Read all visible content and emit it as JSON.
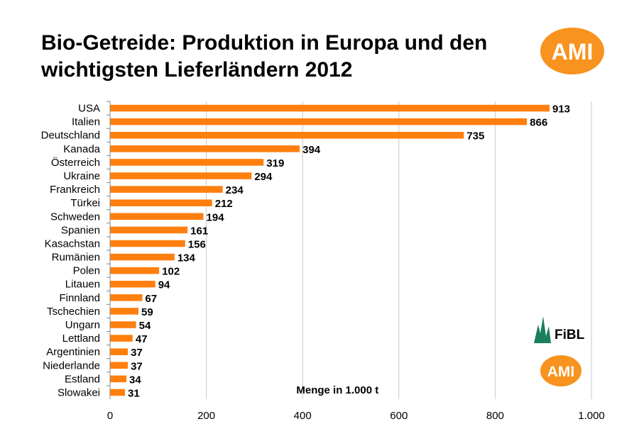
{
  "title_line1": "Bio-Getreide: Produktion in Europa und den",
  "title_line2": "wichtigsten Lieferländern 2012",
  "logos": {
    "ami_text": "AMI",
    "fibl_text": "FiBL",
    "ami_color": "#f7931e"
  },
  "chart_data": {
    "type": "bar",
    "orientation": "horizontal",
    "categories": [
      "USA",
      "Italien",
      "Deutschland",
      "Kanada",
      "Österreich",
      "Ukraine",
      "Frankreich",
      "Türkei",
      "Schweden",
      "Spanien",
      "Kasachstan",
      "Rumänien",
      "Polen",
      "Litauen",
      "Finnland",
      "Tschechien",
      "Ungarn",
      "Lettland",
      "Argentinien",
      "Niederlande",
      "Estland",
      "Slowakei"
    ],
    "values": [
      913,
      866,
      735,
      394,
      319,
      294,
      234,
      212,
      194,
      161,
      156,
      134,
      102,
      94,
      67,
      59,
      54,
      47,
      37,
      37,
      34,
      31
    ],
    "xlim": [
      0,
      1000
    ],
    "xticks": [
      0,
      200,
      400,
      600,
      800,
      1000
    ],
    "xtick_labels": [
      "0",
      "200",
      "400",
      "600",
      "800",
      "1.000"
    ],
    "annotation": "Menge in 1.000 t",
    "bar_color": "#ff7f0e",
    "grid": "vertical",
    "data_labels": true
  }
}
